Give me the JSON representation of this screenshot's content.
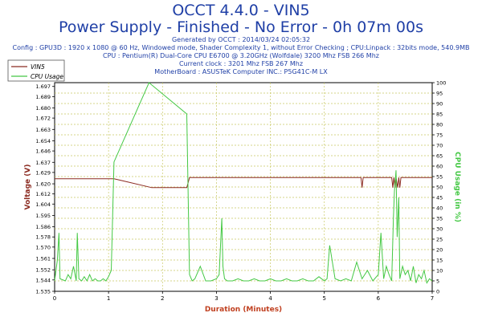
{
  "header": {
    "title": "OCCT 4.4.0 - VIN5",
    "subtitle": "Power Supply - Finished - No Error - 0h 07m 00s",
    "info_lines": [
      "Generated by OCCT : 2014/03/24 02:05:32",
      "Config : GPU3D : 1920 x 1080 @ 60 Hz, Windowed mode, Shader Complexity 1, without Error Checking ; CPU:Linpack : 32bits mode, 540.9MB",
      "CPU : Pentium(R) Dual-Core CPU E6700 @ 3.20GHz (Wolfdale) 3200 Mhz FSB 266 Mhz",
      "Current clock : 3201 Mhz FSB 267 Mhz",
      "MotherBoard : ASUSTeK Computer INC.: P5G41C-M LX"
    ]
  },
  "chart_data": {
    "type": "line",
    "xlabel": "Duration (Minutes)",
    "ylabel_left": "Voltage (V)",
    "ylabel_right": "CPU Usage (in %)",
    "xlim": [
      0,
      7
    ],
    "ylim_left": [
      1.535,
      1.7
    ],
    "ylim_right": [
      0,
      100
    ],
    "x_ticks": [
      "0",
      "1",
      "2",
      "3",
      "4",
      "5",
      "6",
      "7"
    ],
    "y_ticks_left": [
      "1.535",
      "1.544",
      "1.552",
      "1.561",
      "1.570",
      "1.578",
      "1.586",
      "1.595",
      "1.604",
      "1.612",
      "1.620",
      "1.629",
      "1.637",
      "1.646",
      "1.654",
      "1.663",
      "1.672",
      "1.680",
      "1.689",
      "1.697"
    ],
    "y_ticks_right": [
      "0",
      "5",
      "10",
      "15",
      "20",
      "25",
      "30",
      "35",
      "40",
      "45",
      "50",
      "55",
      "60",
      "65",
      "70",
      "75",
      "80",
      "85",
      "90",
      "95",
      "100"
    ],
    "grid": true,
    "legend_position": "top-left",
    "colors": {
      "vin5": "#8b2a20",
      "cpu": "#44c844",
      "title": "#1f3fa6",
      "left_axis": "#8b2a20",
      "right_axis": "#44c844",
      "xlabel": "#c04020",
      "grid": "#c8c864"
    },
    "series": [
      {
        "name": "VIN5",
        "axis": "left",
        "x": [
          0,
          1.0,
          1.1,
          1.3,
          1.8,
          2.0,
          2.45,
          2.47,
          2.5,
          5.68,
          5.7,
          5.72,
          5.74,
          6.25,
          6.27,
          6.29,
          6.31,
          6.33,
          6.36,
          6.38,
          6.4,
          6.42,
          7.0
        ],
        "y": [
          1.624,
          1.624,
          1.624,
          1.622,
          1.617,
          1.617,
          1.617,
          1.62,
          1.625,
          1.625,
          1.617,
          1.625,
          1.625,
          1.625,
          1.617,
          1.625,
          1.617,
          1.625,
          1.617,
          1.625,
          1.617,
          1.625,
          1.625
        ]
      },
      {
        "name": "CPU Usage",
        "axis": "right",
        "x": [
          0,
          0.05,
          0.08,
          0.1,
          0.2,
          0.25,
          0.3,
          0.35,
          0.4,
          0.42,
          0.45,
          0.5,
          0.55,
          0.6,
          0.65,
          0.7,
          0.75,
          0.8,
          0.85,
          0.9,
          0.95,
          1.0,
          1.05,
          1.1,
          1.75,
          2.45,
          2.5,
          2.55,
          2.6,
          2.7,
          2.8,
          2.9,
          3.0,
          3.05,
          3.1,
          3.12,
          3.15,
          3.2,
          3.3,
          3.4,
          3.5,
          3.6,
          3.7,
          3.8,
          3.9,
          4.0,
          4.1,
          4.2,
          4.3,
          4.4,
          4.5,
          4.6,
          4.7,
          4.8,
          4.9,
          5.0,
          5.05,
          5.1,
          5.2,
          5.3,
          5.4,
          5.5,
          5.6,
          5.7,
          5.8,
          5.9,
          6.0,
          6.05,
          6.1,
          6.15,
          6.2,
          6.25,
          6.28,
          6.3,
          6.33,
          6.35,
          6.38,
          6.4,
          6.45,
          6.5,
          6.55,
          6.6,
          6.65,
          6.7,
          6.75,
          6.8,
          6.85,
          6.9,
          6.95,
          7.0
        ],
        "y": [
          5,
          15,
          28,
          6,
          5,
          8,
          6,
          12,
          5,
          28,
          6,
          5,
          7,
          5,
          8,
          5,
          6,
          5,
          5,
          6,
          5,
          7,
          10,
          62,
          100,
          85,
          8,
          5,
          6,
          12,
          5,
          5,
          6,
          8,
          35,
          12,
          6,
          5,
          5,
          6,
          5,
          5,
          6,
          5,
          5,
          6,
          5,
          5,
          6,
          5,
          5,
          6,
          5,
          5,
          7,
          5,
          6,
          22,
          6,
          5,
          6,
          5,
          14,
          6,
          10,
          5,
          8,
          28,
          6,
          12,
          8,
          5,
          35,
          48,
          58,
          26,
          45,
          6,
          12,
          8,
          10,
          5,
          12,
          4,
          8,
          6,
          10,
          4,
          6,
          5
        ]
      }
    ]
  }
}
